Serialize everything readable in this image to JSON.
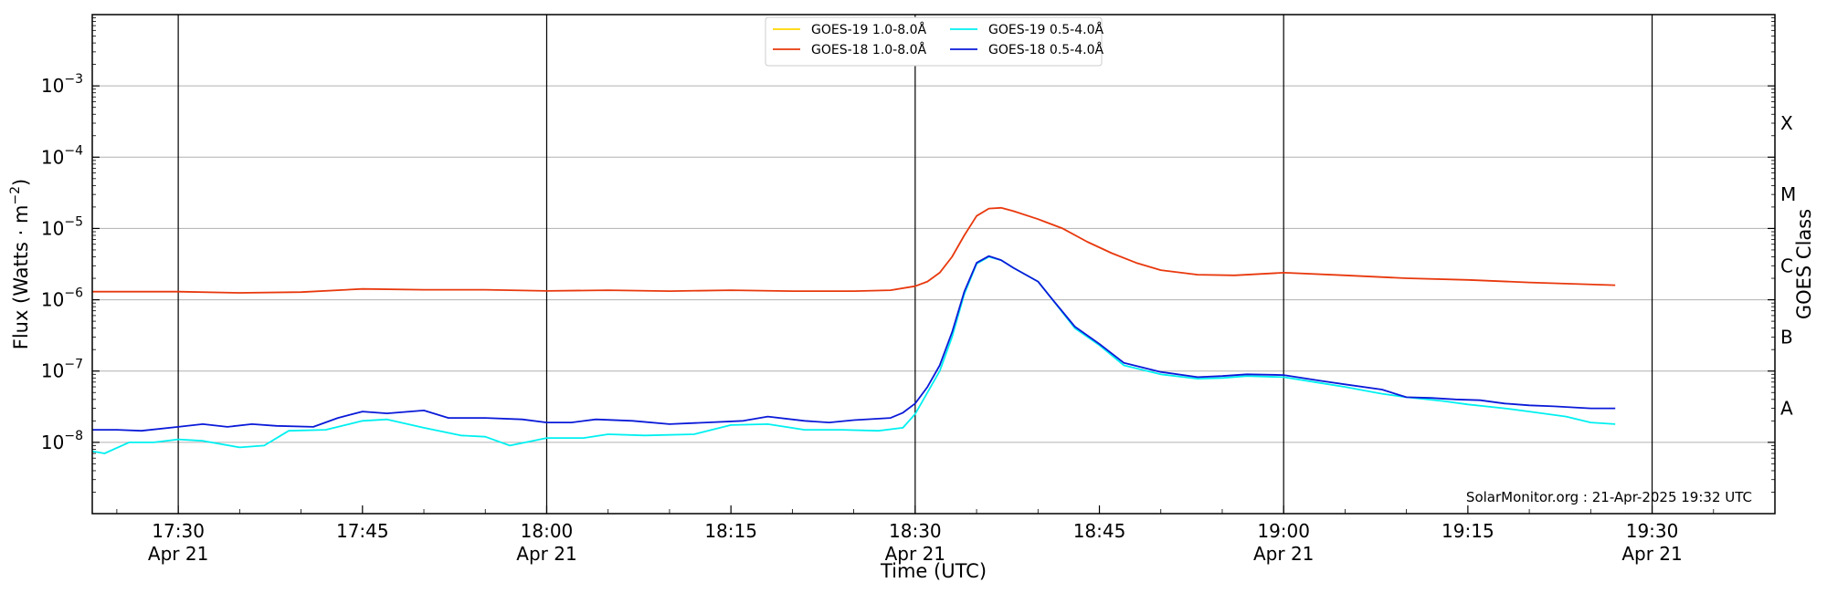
{
  "chart_data": {
    "type": "line",
    "title": "",
    "xlabel": "Time (UTC)",
    "ylabel_main": "Flux (Watts · m",
    "ylabel_exp": "−2",
    "ylabel_close": ")",
    "right_label": "GOES Class",
    "y_scale": "log",
    "ylim": [
      1e-09,
      0.01
    ],
    "x_range_min": [
      "17:23",
      "19:40"
    ],
    "y_ticks": [
      {
        "value": 1e-08,
        "base": "10",
        "exp": "−8"
      },
      {
        "value": 1e-07,
        "base": "10",
        "exp": "−7"
      },
      {
        "value": 1e-06,
        "base": "10",
        "exp": "−6"
      },
      {
        "value": 1e-05,
        "base": "10",
        "exp": "−5"
      },
      {
        "value": 0.0001,
        "base": "10",
        "exp": "−4"
      },
      {
        "value": 0.001,
        "base": "10",
        "exp": "−3"
      }
    ],
    "x_ticks": [
      {
        "time": "17:30",
        "date": "Apr 21"
      },
      {
        "time": "17:45",
        "date": ""
      },
      {
        "time": "18:00",
        "date": "Apr 21"
      },
      {
        "time": "18:15",
        "date": ""
      },
      {
        "time": "18:30",
        "date": "Apr 21"
      },
      {
        "time": "18:45",
        "date": ""
      },
      {
        "time": "19:00",
        "date": "Apr 21"
      },
      {
        "time": "19:15",
        "date": ""
      },
      {
        "time": "19:30",
        "date": "Apr 21"
      }
    ],
    "vertical_lines": [
      "17:30",
      "18:00",
      "18:30",
      "19:00",
      "19:30"
    ],
    "goes_classes": [
      {
        "label": "A",
        "value": 3e-08
      },
      {
        "label": "B",
        "value": 3e-07
      },
      {
        "label": "C",
        "value": 3e-06
      },
      {
        "label": "M",
        "value": 3e-05
      },
      {
        "label": "X",
        "value": 0.0003
      }
    ],
    "grid": "horizontal",
    "legend_position": "top-center",
    "series": [
      {
        "name": "GOES-19 1.0-8.0Å",
        "color": "#ffd700",
        "points": []
      },
      {
        "name": "GOES-18 1.0-8.0Å",
        "color": "#e8380d",
        "points": [
          [
            "17:23",
            1.3e-06
          ],
          [
            "17:30",
            1.3e-06
          ],
          [
            "17:35",
            1.25e-06
          ],
          [
            "17:40",
            1.28e-06
          ],
          [
            "17:45",
            1.42e-06
          ],
          [
            "17:50",
            1.38e-06
          ],
          [
            "17:55",
            1.38e-06
          ],
          [
            "18:00",
            1.33e-06
          ],
          [
            "18:05",
            1.36e-06
          ],
          [
            "18:10",
            1.32e-06
          ],
          [
            "18:15",
            1.36e-06
          ],
          [
            "18:20",
            1.32e-06
          ],
          [
            "18:25",
            1.32e-06
          ],
          [
            "18:28",
            1.36e-06
          ],
          [
            "18:30",
            1.55e-06
          ],
          [
            "18:31",
            1.8e-06
          ],
          [
            "18:32",
            2.4e-06
          ],
          [
            "18:33",
            4e-06
          ],
          [
            "18:34",
            8e-06
          ],
          [
            "18:35",
            1.5e-05
          ],
          [
            "18:36",
            1.9e-05
          ],
          [
            "18:37",
            1.95e-05
          ],
          [
            "18:38",
            1.75e-05
          ],
          [
            "18:40",
            1.35e-05
          ],
          [
            "18:42",
            1e-05
          ],
          [
            "18:44",
            6.5e-06
          ],
          [
            "18:46",
            4.5e-06
          ],
          [
            "18:48",
            3.3e-06
          ],
          [
            "18:50",
            2.6e-06
          ],
          [
            "18:53",
            2.25e-06
          ],
          [
            "18:56",
            2.2e-06
          ],
          [
            "19:00",
            2.4e-06
          ],
          [
            "19:05",
            2.2e-06
          ],
          [
            "19:10",
            2e-06
          ],
          [
            "19:15",
            1.9e-06
          ],
          [
            "19:20",
            1.75e-06
          ],
          [
            "19:27",
            1.6e-06
          ]
        ]
      },
      {
        "name": "GOES-19 0.5-4.0Å",
        "color": "#00f0f0",
        "points": [
          [
            "17:23",
            7.5e-09
          ],
          [
            "17:24",
            7e-09
          ],
          [
            "17:26",
            1e-08
          ],
          [
            "17:28",
            1e-08
          ],
          [
            "17:30",
            1.1e-08
          ],
          [
            "17:32",
            1.05e-08
          ],
          [
            "17:35",
            8.5e-09
          ],
          [
            "17:37",
            9e-09
          ],
          [
            "17:39",
            1.45e-08
          ],
          [
            "17:42",
            1.5e-08
          ],
          [
            "17:45",
            2e-08
          ],
          [
            "17:47",
            2.1e-08
          ],
          [
            "17:50",
            1.6e-08
          ],
          [
            "17:53",
            1.25e-08
          ],
          [
            "17:55",
            1.2e-08
          ],
          [
            "17:57",
            9e-09
          ],
          [
            "18:00",
            1.15e-08
          ],
          [
            "18:03",
            1.15e-08
          ],
          [
            "18:05",
            1.3e-08
          ],
          [
            "18:08",
            1.25e-08
          ],
          [
            "18:12",
            1.3e-08
          ],
          [
            "18:15",
            1.75e-08
          ],
          [
            "18:18",
            1.8e-08
          ],
          [
            "18:21",
            1.5e-08
          ],
          [
            "18:24",
            1.5e-08
          ],
          [
            "18:27",
            1.45e-08
          ],
          [
            "18:29",
            1.6e-08
          ],
          [
            "18:30",
            2.5e-08
          ],
          [
            "18:31",
            5e-08
          ],
          [
            "18:32",
            1e-07
          ],
          [
            "18:33",
            3e-07
          ],
          [
            "18:34",
            1.2e-06
          ],
          [
            "18:35",
            3.2e-06
          ],
          [
            "18:36",
            4e-06
          ],
          [
            "18:37",
            3.6e-06
          ],
          [
            "18:38",
            2.8e-06
          ],
          [
            "18:40",
            1.8e-06
          ],
          [
            "18:41",
            1.1e-06
          ],
          [
            "18:43",
            4e-07
          ],
          [
            "18:45",
            2.3e-07
          ],
          [
            "18:47",
            1.2e-07
          ],
          [
            "18:50",
            9e-08
          ],
          [
            "18:53",
            7.8e-08
          ],
          [
            "18:55",
            8e-08
          ],
          [
            "18:57",
            8.5e-08
          ],
          [
            "19:00",
            8.2e-08
          ],
          [
            "19:03",
            6.8e-08
          ],
          [
            "19:05",
            6e-08
          ],
          [
            "19:08",
            4.8e-08
          ],
          [
            "19:10",
            4.3e-08
          ],
          [
            "19:13",
            3.8e-08
          ],
          [
            "19:15",
            3.4e-08
          ],
          [
            "19:18",
            3e-08
          ],
          [
            "19:20",
            2.7e-08
          ],
          [
            "19:23",
            2.3e-08
          ],
          [
            "19:25",
            1.9e-08
          ],
          [
            "19:27",
            1.8e-08
          ]
        ]
      },
      {
        "name": "GOES-18 0.5-4.0Å",
        "color": "#0a1ad8",
        "points": [
          [
            "17:23",
            1.5e-08
          ],
          [
            "17:25",
            1.5e-08
          ],
          [
            "17:27",
            1.45e-08
          ],
          [
            "17:30",
            1.65e-08
          ],
          [
            "17:32",
            1.8e-08
          ],
          [
            "17:34",
            1.65e-08
          ],
          [
            "17:36",
            1.8e-08
          ],
          [
            "17:38",
            1.7e-08
          ],
          [
            "17:41",
            1.65e-08
          ],
          [
            "17:43",
            2.2e-08
          ],
          [
            "17:45",
            2.7e-08
          ],
          [
            "17:47",
            2.55e-08
          ],
          [
            "17:50",
            2.8e-08
          ],
          [
            "17:52",
            2.2e-08
          ],
          [
            "17:55",
            2.2e-08
          ],
          [
            "17:58",
            2.1e-08
          ],
          [
            "18:00",
            1.9e-08
          ],
          [
            "18:02",
            1.9e-08
          ],
          [
            "18:04",
            2.1e-08
          ],
          [
            "18:07",
            2e-08
          ],
          [
            "18:10",
            1.8e-08
          ],
          [
            "18:13",
            1.9e-08
          ],
          [
            "18:16",
            2e-08
          ],
          [
            "18:18",
            2.3e-08
          ],
          [
            "18:21",
            2e-08
          ],
          [
            "18:23",
            1.9e-08
          ],
          [
            "18:25",
            2.05e-08
          ],
          [
            "18:28",
            2.2e-08
          ],
          [
            "18:29",
            2.6e-08
          ],
          [
            "18:30",
            3.5e-08
          ],
          [
            "18:31",
            6e-08
          ],
          [
            "18:32",
            1.2e-07
          ],
          [
            "18:33",
            3.5e-07
          ],
          [
            "18:34",
            1.3e-06
          ],
          [
            "18:35",
            3.3e-06
          ],
          [
            "18:36",
            4.1e-06
          ],
          [
            "18:37",
            3.6e-06
          ],
          [
            "18:38",
            2.8e-06
          ],
          [
            "18:40",
            1.8e-06
          ],
          [
            "18:41",
            1.1e-06
          ],
          [
            "18:43",
            4.2e-07
          ],
          [
            "18:45",
            2.4e-07
          ],
          [
            "18:47",
            1.3e-07
          ],
          [
            "18:50",
            9.7e-08
          ],
          [
            "18:53",
            8.2e-08
          ],
          [
            "18:55",
            8.5e-08
          ],
          [
            "18:57",
            9e-08
          ],
          [
            "19:00",
            8.8e-08
          ],
          [
            "19:03",
            7.3e-08
          ],
          [
            "19:05",
            6.5e-08
          ],
          [
            "19:08",
            5.5e-08
          ],
          [
            "19:10",
            4.3e-08
          ],
          [
            "19:12",
            4.2e-08
          ],
          [
            "19:14",
            4e-08
          ],
          [
            "19:16",
            3.9e-08
          ],
          [
            "19:18",
            3.5e-08
          ],
          [
            "19:20",
            3.3e-08
          ],
          [
            "19:22",
            3.2e-08
          ],
          [
            "19:25",
            3e-08
          ],
          [
            "19:27",
            3e-08
          ]
        ]
      }
    ],
    "annotation": "SolarMonitor.org : 21-Apr-2025 19:32 UTC"
  }
}
